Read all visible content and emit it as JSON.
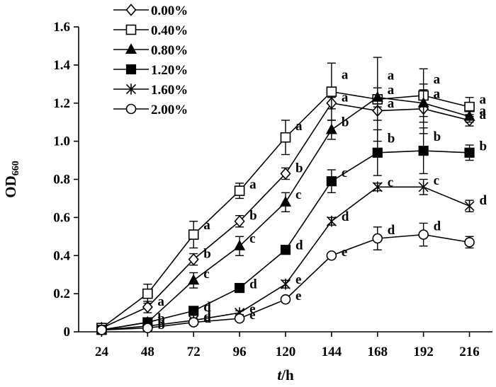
{
  "chart_data": {
    "type": "line",
    "title": "",
    "xlabel": {
      "var": "t",
      "unit": "/h"
    },
    "ylabel": {
      "main": "OD",
      "sub": "660"
    },
    "x": [
      24,
      48,
      72,
      96,
      120,
      144,
      168,
      192,
      216
    ],
    "xlim": [
      12,
      228
    ],
    "ylim": [
      0,
      1.6
    ],
    "yticks": [
      "0",
      "0.2",
      "0.4",
      "0.6",
      "0.8",
      "1.0",
      "1.2",
      "1.4",
      "1.6"
    ],
    "grid": false,
    "legend_position": "top-left",
    "series": [
      {
        "name": "0.00%",
        "marker": "diamond-open",
        "values": [
          0.02,
          0.13,
          0.38,
          0.58,
          0.83,
          1.2,
          1.16,
          1.17,
          1.11
        ],
        "errors": [
          0.01,
          0.03,
          0.03,
          0.03,
          0.03,
          0.03,
          0.05,
          0.13,
          0.03
        ],
        "letters": [
          "",
          "a",
          "b",
          "b",
          "b",
          "a",
          "a",
          "a",
          "a"
        ]
      },
      {
        "name": "0.40%",
        "marker": "square-open",
        "values": [
          0.02,
          0.2,
          0.51,
          0.74,
          1.02,
          1.26,
          1.22,
          1.24,
          1.18
        ],
        "errors": [
          0.01,
          0.05,
          0.07,
          0.04,
          0.09,
          0.15,
          0.22,
          0.14,
          0.05
        ],
        "letters": [
          "",
          "",
          "a",
          "a",
          "a",
          "a",
          "a",
          "a",
          "a"
        ]
      },
      {
        "name": "0.80%",
        "marker": "triangle-filled",
        "values": [
          0.01,
          0.05,
          0.27,
          0.45,
          0.68,
          1.06,
          1.23,
          1.2,
          1.13
        ],
        "errors": [
          0.01,
          0.02,
          0.04,
          0.05,
          0.05,
          0.05,
          0.05,
          0.07,
          0.03
        ],
        "letters": [
          "",
          "",
          "c",
          "c",
          "c",
          "b",
          "a",
          "a",
          "a"
        ]
      },
      {
        "name": "1.20%",
        "marker": "square-filled",
        "values": [
          0.01,
          0.05,
          0.11,
          0.23,
          0.43,
          0.79,
          0.94,
          0.95,
          0.94
        ],
        "errors": [
          0.01,
          0.01,
          0.01,
          0.01,
          0.02,
          0.06,
          0.12,
          0.12,
          0.04
        ],
        "letters": [
          "",
          "b",
          "d",
          "d",
          "d",
          "c",
          "b",
          "b",
          "b"
        ]
      },
      {
        "name": "1.60%",
        "marker": "star",
        "values": [
          0.01,
          0.03,
          0.06,
          0.1,
          0.25,
          0.58,
          0.76,
          0.76,
          0.66
        ],
        "errors": [
          0.005,
          0.01,
          0.01,
          0.01,
          0.02,
          0.02,
          0.02,
          0.04,
          0.03
        ],
        "letters": [
          "",
          "b",
          "d",
          "e",
          "e",
          "d",
          "c",
          "c",
          "d"
        ]
      },
      {
        "name": "2.00%",
        "marker": "circle-open",
        "values": [
          0.01,
          0.02,
          0.05,
          0.07,
          0.17,
          0.4,
          0.49,
          0.51,
          0.47
        ],
        "errors": [
          0.005,
          0.005,
          0.01,
          0.01,
          0.01,
          0.01,
          0.06,
          0.06,
          0.03
        ],
        "letters": [
          "",
          "b",
          "d",
          "e",
          "e",
          "e",
          "d",
          "d",
          ""
        ]
      }
    ]
  }
}
